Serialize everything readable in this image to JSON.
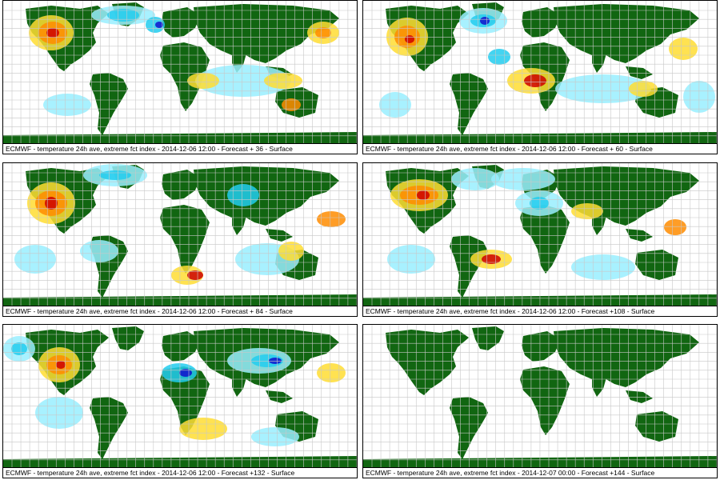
{
  "panels": [
    {
      "caption": "ECMWF - temperature 24h ave, extreme fct index - 2014-12-06 12:00 - Forecast + 36 - Surface",
      "has_data": true
    },
    {
      "caption": "ECMWF - temperature 24h ave, extreme fct index - 2014-12-06 12:00 - Forecast + 60 - Surface",
      "has_data": true
    },
    {
      "caption": "ECMWF - temperature 24h ave, extreme fct index - 2014-12-06 12:00 - Forecast + 84 - Surface",
      "has_data": true
    },
    {
      "caption": "ECMWF - temperature 24h ave, extreme fct index - 2014-12-06 12:00 - Forecast +108 - Surface",
      "has_data": true
    },
    {
      "caption": "ECMWF - temperature 24h ave, extreme fct index - 2014-12-06 12:00 - Forecast +132 - Surface",
      "has_data": true
    },
    {
      "caption": "ECMWF - temperature 24h ave, extreme fct index - 2014-12-07 00:00 - Forecast +144 - Surface",
      "has_data": false
    }
  ],
  "colors": {
    "land": "#116611",
    "grid": "#c8c8c8",
    "warm_light": "#ffdd33",
    "warm_mid": "#ff8c00",
    "warm_high": "#cc0000",
    "cold_light": "#99eeff",
    "cold_mid": "#22ccee",
    "cold_high": "#1111cc"
  }
}
